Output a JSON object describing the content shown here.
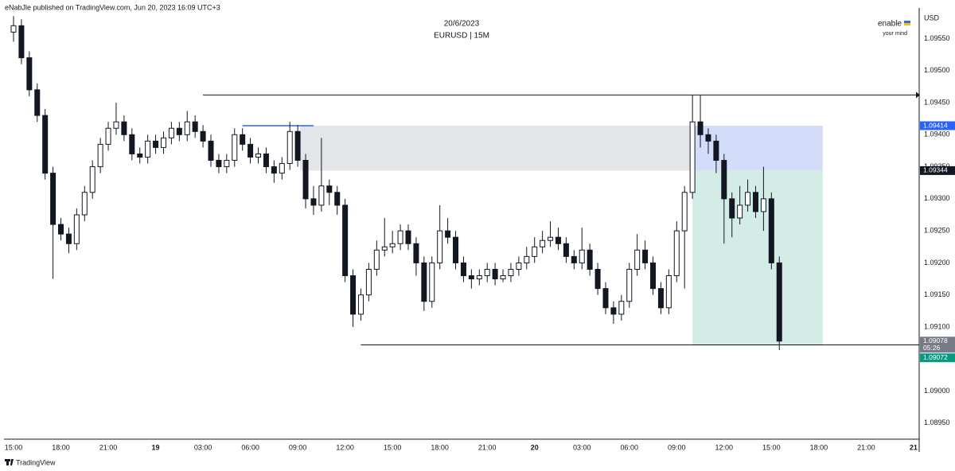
{
  "header": "eNabJle published on TradingView.com, Jun 20, 2023 16:09 UTC+3",
  "footer": "TradingView",
  "chart_data": {
    "type": "candlestick",
    "title": "20/6/2023",
    "subtitle": "EURUSD | 15M",
    "watermark": {
      "title": "enable",
      "subtitle": "your mind"
    },
    "y_axis_label": "USD",
    "ylim": [
      1.08925,
      1.09589
    ],
    "yticks": [
      {
        "value": 1.0895,
        "label": "1.08950"
      },
      {
        "value": 1.09,
        "label": "1.09000"
      },
      {
        "value": 1.0905,
        "label": "1.09050"
      },
      {
        "value": 1.091,
        "label": "1.09100"
      },
      {
        "value": 1.0915,
        "label": "1.09150"
      },
      {
        "value": 1.092,
        "label": "1.09200"
      },
      {
        "value": 1.0925,
        "label": "1.09250"
      },
      {
        "value": 1.093,
        "label": "1.09300"
      },
      {
        "value": 1.0935,
        "label": "1.09350"
      },
      {
        "value": 1.094,
        "label": "1.09400"
      },
      {
        "value": 1.0945,
        "label": "1.09450"
      },
      {
        "value": 1.095,
        "label": "1.09500"
      },
      {
        "value": 1.0955,
        "label": "1.09550"
      }
    ],
    "categories": [
      "15:00",
      null,
      null,
      null,
      null,
      null,
      "18:00",
      null,
      null,
      null,
      null,
      null,
      "21:00",
      null,
      null,
      null,
      null,
      null,
      "19",
      null,
      null,
      null,
      null,
      null,
      "03:00",
      null,
      null,
      null,
      null,
      null,
      "06:00",
      null,
      null,
      null,
      null,
      null,
      "09:00",
      null,
      null,
      null,
      null,
      null,
      "12:00",
      null,
      null,
      null,
      null,
      null,
      "15:00",
      null,
      null,
      null,
      null,
      null,
      "18:00",
      null,
      null,
      null,
      null,
      null,
      "21:00",
      null,
      null,
      null,
      null,
      null,
      "20",
      null,
      null,
      null,
      null,
      null,
      "03:00",
      null,
      null,
      null,
      null,
      null,
      "06:00",
      null,
      null,
      null,
      null,
      null,
      "09:00",
      null,
      null,
      null,
      null,
      null,
      "12:00",
      null,
      null,
      null,
      null,
      null,
      "15:00",
      null,
      null,
      null,
      null,
      null,
      "18:00",
      null,
      null,
      null,
      null,
      null,
      "21:00",
      null,
      null,
      null,
      null,
      null,
      "21"
    ],
    "open": [
      1.0956,
      1.0957,
      1.0952,
      1.0947,
      1.0943,
      1.0934,
      1.0926,
      1.09245,
      1.0923,
      1.09275,
      1.0931,
      1.0935,
      1.09385,
      1.0941,
      1.0942,
      1.094,
      1.0937,
      1.09365,
      1.0939,
      1.0938,
      1.09395,
      1.0941,
      1.094,
      1.0942,
      1.09405,
      1.0939,
      1.0936,
      1.0935,
      1.0936,
      1.094,
      1.09385,
      1.09365,
      1.0937,
      1.0935,
      1.0934,
      1.09355,
      1.09405,
      1.0936,
      1.093,
      1.0929,
      1.0932,
      1.0931,
      1.0929,
      1.0918,
      1.0912,
      1.0915,
      1.0919,
      1.0922,
      1.09225,
      1.0923,
      1.0925,
      1.0923,
      1.092,
      1.0914,
      1.092,
      1.0925,
      1.0924,
      1.092,
      1.0918,
      1.09175,
      1.0918,
      1.0919,
      1.09175,
      1.0918,
      1.0919,
      1.092,
      1.0921,
      1.09225,
      1.09235,
      1.0924,
      1.0923,
      1.0921,
      1.092,
      1.0922,
      1.0919,
      1.0916,
      1.0913,
      1.0912,
      1.0914,
      1.0919,
      1.0922,
      1.092,
      1.0916,
      1.0913,
      1.0918,
      1.0925,
      1.0931,
      1.0942,
      1.094,
      1.0939,
      1.0936,
      1.093,
      1.0927,
      1.0929,
      1.0931,
      1.0928,
      1.093,
      1.092,
      null,
      null,
      null,
      null,
      null,
      null,
      null,
      null,
      null,
      null,
      null,
      null,
      null,
      null,
      null,
      null,
      null
    ],
    "high": [
      1.09585,
      1.0958,
      1.0953,
      1.0948,
      1.0944,
      1.0935,
      1.0927,
      1.09255,
      1.09285,
      1.0932,
      1.0936,
      1.09395,
      1.0942,
      1.0945,
      1.0943,
      1.0941,
      1.0938,
      1.094,
      1.094,
      1.09405,
      1.0942,
      1.0942,
      1.09437,
      1.0943,
      1.09415,
      1.094,
      1.0937,
      1.0937,
      1.0941,
      1.0941,
      1.09395,
      1.0938,
      1.0938,
      1.0936,
      1.09365,
      1.0942,
      1.09415,
      1.0937,
      1.0932,
      1.09395,
      1.0933,
      1.0932,
      1.093,
      1.0919,
      1.0916,
      1.092,
      1.09235,
      1.0927,
      1.0925,
      1.0926,
      1.0926,
      1.0924,
      1.0921,
      1.0921,
      1.0929,
      1.0927,
      1.0925,
      1.0921,
      1.0919,
      1.0919,
      1.092,
      1.092,
      1.0919,
      1.092,
      1.0921,
      1.09225,
      1.0924,
      1.0925,
      1.09265,
      1.09255,
      1.0924,
      1.0922,
      1.09255,
      1.0923,
      1.092,
      1.0917,
      1.0914,
      1.0915,
      1.092,
      1.09245,
      1.09235,
      1.0921,
      1.0917,
      1.0919,
      1.09265,
      1.0932,
      1.09462,
      1.09462,
      1.0941,
      1.094,
      1.0937,
      1.0931,
      1.0932,
      1.0933,
      1.0932,
      1.0935,
      1.0931,
      1.0921,
      null,
      null,
      null,
      null,
      null,
      null,
      null,
      null,
      null,
      null,
      null,
      null,
      null,
      null,
      null,
      null,
      null
    ],
    "low": [
      1.09545,
      1.0951,
      1.0946,
      1.0942,
      1.0933,
      1.09175,
      1.09235,
      1.09215,
      1.0922,
      1.09265,
      1.093,
      1.0934,
      1.09375,
      1.094,
      1.0939,
      1.0936,
      1.09355,
      1.09355,
      1.0937,
      1.0937,
      1.09385,
      1.0939,
      1.0939,
      1.09395,
      1.0938,
      1.0935,
      1.0934,
      1.0934,
      1.0935,
      1.09375,
      1.09355,
      1.09355,
      1.0934,
      1.09325,
      1.0933,
      1.09345,
      1.0935,
      1.09285,
      1.09275,
      1.0928,
      1.0929,
      1.09275,
      1.0917,
      1.091,
      1.0911,
      1.0914,
      1.0918,
      1.0921,
      1.09215,
      1.0922,
      1.0922,
      1.0918,
      1.09125,
      1.0913,
      1.0919,
      1.0923,
      1.0919,
      1.0917,
      1.0916,
      1.09165,
      1.0917,
      1.09165,
      1.0917,
      1.0917,
      1.0918,
      1.0919,
      1.092,
      1.09215,
      1.09225,
      1.0922,
      1.092,
      1.0919,
      1.0919,
      1.0918,
      1.0915,
      1.0912,
      1.09105,
      1.0911,
      1.0913,
      1.0918,
      1.0919,
      1.0915,
      1.0912,
      1.0912,
      1.0917,
      1.0916,
      1.093,
      1.0938,
      1.0937,
      1.0934,
      1.0923,
      1.0924,
      1.0926,
      1.0928,
      1.0927,
      1.0925,
      1.0919,
      1.09064,
      null,
      null,
      null,
      null,
      null,
      null,
      null,
      null,
      null,
      null,
      null,
      null,
      null,
      null,
      null,
      null,
      null
    ],
    "close": [
      1.0957,
      1.0952,
      1.0947,
      1.0943,
      1.0934,
      1.0926,
      1.09245,
      1.0923,
      1.09275,
      1.0931,
      1.0935,
      1.09385,
      1.0941,
      1.0942,
      1.094,
      1.0937,
      1.09365,
      1.0939,
      1.0938,
      1.09395,
      1.0941,
      1.094,
      1.0942,
      1.09405,
      1.0939,
      1.0936,
      1.0935,
      1.0936,
      1.094,
      1.09385,
      1.09365,
      1.0937,
      1.0935,
      1.0934,
      1.09355,
      1.09405,
      1.0936,
      1.093,
      1.0929,
      1.0932,
      1.0931,
      1.0929,
      1.0918,
      1.0912,
      1.0915,
      1.0919,
      1.0922,
      1.09225,
      1.0923,
      1.0925,
      1.0923,
      1.092,
      1.0914,
      1.092,
      1.0925,
      1.0924,
      1.092,
      1.0918,
      1.09175,
      1.0918,
      1.0919,
      1.09175,
      1.0918,
      1.0919,
      1.092,
      1.0921,
      1.09225,
      1.09235,
      1.0924,
      1.0923,
      1.0921,
      1.092,
      1.0922,
      1.0919,
      1.0916,
      1.0913,
      1.0912,
      1.0914,
      1.0919,
      1.0922,
      1.092,
      1.0916,
      1.0913,
      1.0918,
      1.0925,
      1.0931,
      1.0942,
      1.094,
      1.0939,
      1.0936,
      1.093,
      1.0927,
      1.0929,
      1.0931,
      1.0928,
      1.093,
      1.092,
      1.09078,
      null,
      null,
      null,
      null,
      null,
      null,
      null,
      null,
      null,
      null,
      null,
      null,
      null,
      null,
      null,
      null,
      null
    ],
    "up_color": "#ffffff",
    "down_color": "#131722",
    "zones": [
      {
        "from": 1.09414,
        "to": 1.09344,
        "color": "#e4e5e8"
      },
      {
        "from": 1.09414,
        "to": 1.09344,
        "color": "#d3ddfa"
      },
      {
        "from": 1.09344,
        "to": 1.09072,
        "color": "#d4ece6"
      }
    ],
    "lines": [
      {
        "value": 1.09462,
        "color": "#131722"
      },
      {
        "value": 1.09072,
        "color": "#131722"
      },
      {
        "value": 1.09414,
        "color": "#2962ff"
      }
    ],
    "price_labels": [
      {
        "value": 1.09414,
        "label": "1.09414",
        "color": "#2962ff"
      },
      {
        "value": 1.09344,
        "label": "1.09344",
        "color": "#131722"
      },
      {
        "value": 1.09078,
        "label": "1.09078",
        "sublabel": "05:26",
        "color": "#787b86"
      },
      {
        "value": 1.09072,
        "label": "1.09072",
        "color": "#089981"
      }
    ]
  }
}
